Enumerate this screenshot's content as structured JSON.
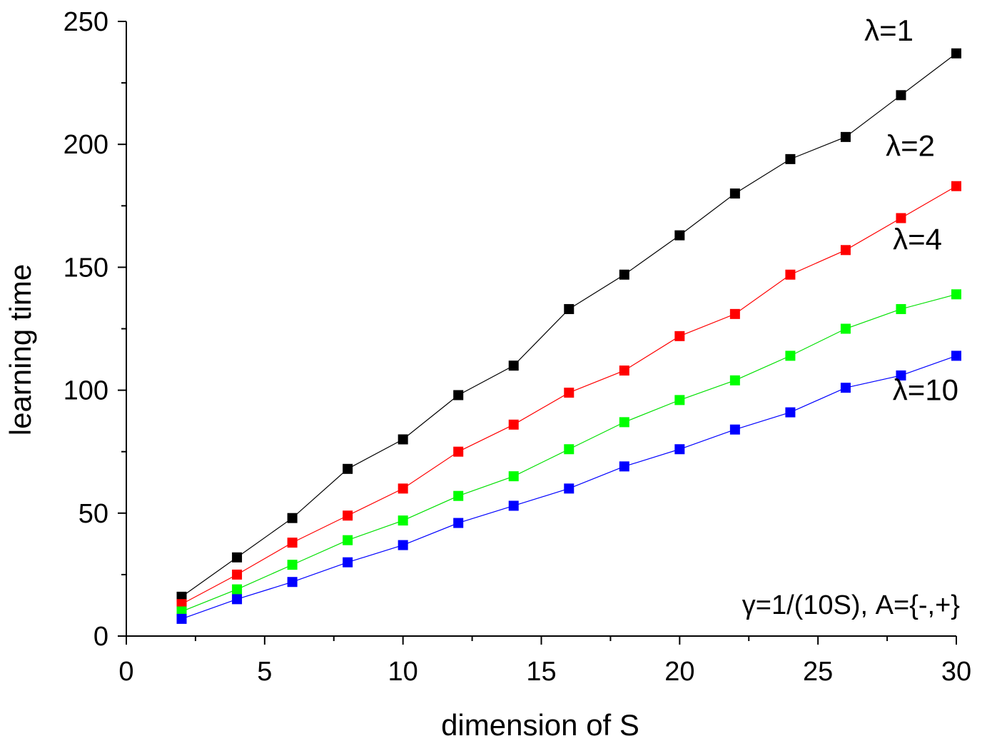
{
  "chart_data": {
    "type": "line",
    "title": "",
    "xlabel": "dimension of S",
    "ylabel": "learning time",
    "xlim": [
      0,
      30
    ],
    "ylim": [
      0,
      250
    ],
    "x_ticks": [
      0,
      5,
      10,
      15,
      20,
      25,
      30
    ],
    "y_ticks": [
      0,
      50,
      100,
      150,
      200,
      250
    ],
    "x": [
      2,
      4,
      6,
      8,
      10,
      12,
      14,
      16,
      18,
      20,
      22,
      24,
      26,
      28,
      30
    ],
    "series": [
      {
        "name": "λ=1",
        "color": "#000000",
        "values": [
          16,
          32,
          48,
          68,
          80,
          98,
          110,
          133,
          147,
          163,
          180,
          194,
          203,
          220,
          237
        ]
      },
      {
        "name": "λ=2",
        "color": "#ff0000",
        "values": [
          13,
          25,
          38,
          49,
          60,
          75,
          86,
          99,
          108,
          122,
          131,
          147,
          157,
          170,
          183
        ]
      },
      {
        "name": "λ=4",
        "color": "#00ff00",
        "values": [
          10,
          19,
          29,
          39,
          47,
          57,
          65,
          76,
          87,
          96,
          104,
          114,
          125,
          133,
          139
        ]
      },
      {
        "name": "λ=10",
        "color": "#0000ff",
        "values": [
          7,
          15,
          22,
          30,
          37,
          46,
          53,
          60,
          69,
          76,
          84,
          91,
          101,
          106,
          114
        ]
      }
    ],
    "annotation": "γ=1/(10S), A={-,+}",
    "grid": false,
    "legend": "inline labels at right of each series"
  }
}
